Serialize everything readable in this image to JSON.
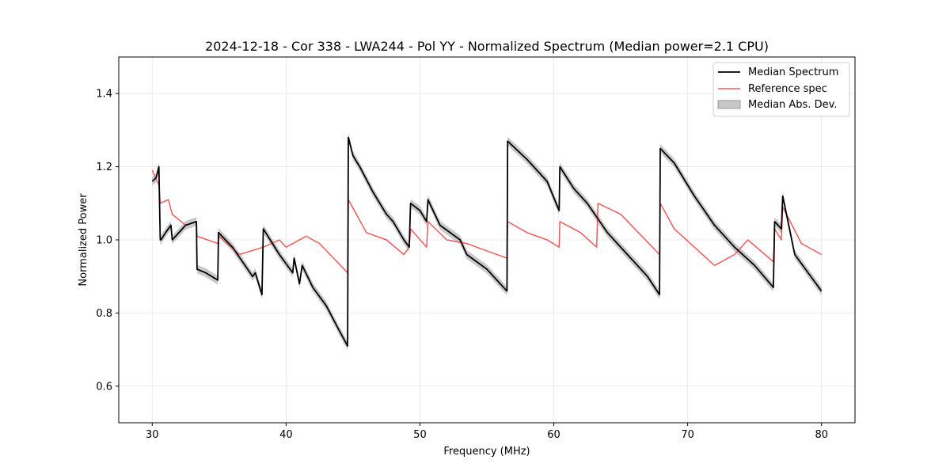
{
  "chart_data": {
    "type": "line",
    "title": "2024-12-18 - Cor 338 - LWA244 - Pol YY - Normalized Spectrum (Median power=2.1 CPU)",
    "xlabel": "Frequency (MHz)",
    "ylabel": "Normalized Power",
    "xlim": [
      27.5,
      82.5
    ],
    "ylim": [
      0.5,
      1.5
    ],
    "xticks": [
      30,
      40,
      50,
      60,
      70,
      80
    ],
    "yticks": [
      0.6,
      0.8,
      1.0,
      1.2,
      1.4
    ],
    "xtick_labels": [
      "30",
      "40",
      "50",
      "60",
      "70",
      "80"
    ],
    "ytick_labels": [
      "0.6",
      "0.8",
      "1.0",
      "1.2",
      "1.4"
    ],
    "grid": true,
    "legend_position": "top-right",
    "series": [
      {
        "name": "Median Spectrum",
        "color": "#000000",
        "x": [
          30.0,
          30.3,
          30.5,
          30.6,
          30.65,
          31.0,
          31.4,
          31.5,
          32.5,
          33.3,
          33.35,
          34.0,
          34.9,
          34.95,
          36.0,
          37.5,
          37.7,
          38.2,
          38.3,
          39.5,
          40.5,
          40.6,
          41.0,
          41.2,
          42.0,
          43.0,
          44.0,
          44.6,
          44.65,
          45.0,
          45.5,
          46.5,
          47.5,
          48.0,
          48.8,
          49.2,
          49.3,
          50.0,
          50.5,
          50.6,
          51.5,
          53.0,
          53.5,
          55.0,
          56.5,
          56.55,
          58.0,
          59.5,
          60.4,
          60.45,
          61.5,
          62.5,
          64.0,
          65.5,
          67.0,
          67.9,
          67.95,
          69.0,
          70.5,
          72.0,
          73.5,
          75.0,
          76.4,
          76.5,
          77.0,
          77.1,
          78.0,
          79.0,
          80.0
        ],
        "values": [
          1.16,
          1.17,
          1.2,
          1.0,
          1.0,
          1.02,
          1.04,
          1.0,
          1.04,
          1.05,
          0.92,
          0.91,
          0.89,
          1.02,
          0.98,
          0.9,
          0.91,
          0.85,
          1.03,
          0.96,
          0.91,
          0.95,
          0.88,
          0.93,
          0.87,
          0.82,
          0.75,
          0.71,
          1.28,
          1.23,
          1.2,
          1.13,
          1.07,
          1.05,
          1.0,
          0.98,
          1.1,
          1.08,
          1.05,
          1.11,
          1.04,
          1.0,
          0.96,
          0.92,
          0.86,
          1.27,
          1.22,
          1.16,
          1.08,
          1.2,
          1.14,
          1.1,
          1.02,
          0.96,
          0.9,
          0.85,
          1.25,
          1.21,
          1.12,
          1.04,
          0.98,
          0.93,
          0.87,
          1.05,
          1.03,
          1.12,
          0.96,
          0.91,
          0.86
        ]
      },
      {
        "name": "Reference spec",
        "color": "#ef5a5a",
        "x": [
          30.0,
          30.5,
          30.6,
          31.2,
          31.5,
          32.5,
          33.3,
          33.35,
          34.9,
          35.0,
          36.5,
          38.3,
          39.5,
          40.0,
          41.5,
          42.5,
          44.6,
          44.65,
          46.0,
          47.5,
          48.8,
          49.2,
          49.3,
          50.5,
          50.6,
          52.0,
          53.5,
          55.0,
          56.5,
          56.55,
          58.0,
          59.5,
          60.4,
          60.45,
          62.0,
          63.2,
          63.3,
          65.0,
          67.9,
          67.95,
          69.0,
          70.5,
          72.0,
          73.5,
          74.5,
          76.4,
          76.5,
          77.0,
          77.1,
          78.5,
          80.0
        ],
        "values": [
          1.19,
          1.15,
          1.1,
          1.11,
          1.07,
          1.04,
          1.05,
          1.01,
          0.99,
          1.01,
          0.96,
          0.98,
          1.0,
          0.98,
          1.01,
          0.99,
          0.91,
          1.11,
          1.02,
          1.0,
          0.96,
          0.98,
          1.03,
          0.98,
          1.05,
          1.0,
          0.99,
          0.97,
          0.95,
          1.05,
          1.02,
          1.0,
          0.98,
          1.05,
          1.02,
          0.98,
          1.1,
          1.07,
          0.96,
          1.1,
          1.03,
          0.98,
          0.93,
          0.96,
          1.0,
          0.94,
          1.03,
          1.0,
          1.09,
          0.99,
          0.96
        ]
      }
    ],
    "band": {
      "name": "Median Abs. Dev.",
      "color": "#c0c0c0",
      "deviation": 0.012
    }
  }
}
